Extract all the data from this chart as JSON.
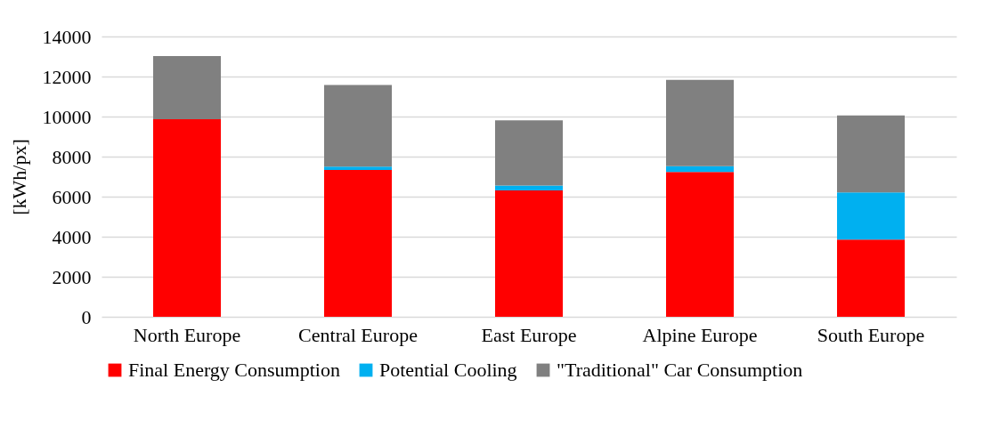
{
  "chart_data": {
    "type": "bar",
    "stacked": true,
    "ylabel": "[kWh/px]",
    "categories": [
      "North Europe",
      "Central Europe",
      "East Europe",
      "Alpine Europe",
      "South Europe"
    ],
    "series": [
      {
        "name": "Final Energy Consumption",
        "color": "#ff0000",
        "values": [
          9870,
          7330,
          6310,
          7230,
          3860
        ]
      },
      {
        "name": "Potential Cooling",
        "color": "#00b0f0",
        "values": [
          0,
          170,
          250,
          290,
          2350
        ]
      },
      {
        "name": "\"Traditional\" Car Consumption",
        "color": "#808080",
        "values": [
          3150,
          4080,
          3250,
          4310,
          3850
        ]
      }
    ],
    "ylim": [
      0,
      14000
    ],
    "yticks": [
      0,
      2000,
      4000,
      6000,
      8000,
      10000,
      12000,
      14000
    ],
    "grid": "y",
    "legend": "bottom"
  }
}
